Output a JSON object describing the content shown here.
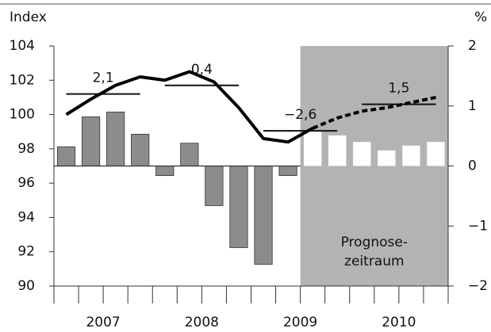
{
  "chart_data": {
    "type": "line-bar",
    "ylabel": "Index",
    "y2label": "%",
    "categories": [
      null,
      null,
      null,
      null,
      null,
      null,
      null,
      null,
      null,
      null,
      null,
      null,
      null,
      null,
      null,
      null
    ],
    "groups": [
      "2007",
      "2008",
      "2009",
      "2010"
    ],
    "ylim": [
      90,
      104
    ],
    "yticks": [
      90,
      92,
      94,
      96,
      98,
      100,
      102,
      104
    ],
    "y2lim": [
      -2,
      2
    ],
    "y2ticks": [
      {
        "value": -2,
        "label": "−2"
      },
      {
        "value": -1,
        "label": "−1"
      },
      0,
      1,
      2
    ],
    "bars": {
      "axis": "y2",
      "color": "#8c8c8c",
      "forecast_color": "#ffffff",
      "values": [
        0.32,
        0.82,
        0.9,
        0.53,
        -0.16,
        0.38,
        -0.66,
        -1.36,
        -1.64,
        -0.16,
        0.58,
        0.51,
        0.4,
        0.26,
        0.34,
        0.4
      ]
    },
    "series": [
      {
        "color": "#000000",
        "style": "solid",
        "values": [
          100.0,
          100.9,
          101.7,
          102.2,
          102.0,
          102.5,
          101.9,
          100.4,
          98.6,
          98.4,
          99.2,
          null,
          null,
          null,
          null,
          null
        ]
      },
      {
        "color": "#000000",
        "style": "dashed",
        "values": [
          null,
          null,
          null,
          null,
          null,
          null,
          null,
          null,
          null,
          null,
          99.2,
          99.8,
          100.2,
          100.4,
          100.7,
          101.0
        ]
      }
    ],
    "annual": {
      "levels": [
        101.2,
        101.7,
        99.05,
        100.6
      ],
      "values": [
        2.1,
        0.4,
        -2.6,
        1.5
      ],
      "value_labels": [
        "2,1",
        "0,4",
        "−2,6",
        "1,5"
      ]
    },
    "forecast_label": [
      "Prognose-",
      "zeitraum"
    ],
    "shade_color": "#b3b3b3"
  }
}
